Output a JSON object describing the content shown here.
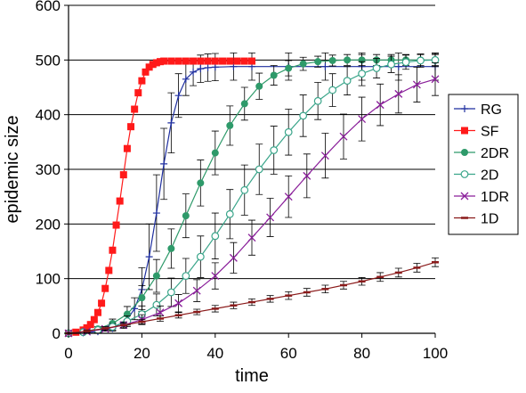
{
  "chart_data": {
    "type": "line",
    "title": "",
    "xlabel": "time",
    "ylabel": "epidemic size",
    "xlim": [
      0,
      100
    ],
    "ylim": [
      0,
      600
    ],
    "xticks": [
      "0",
      "20",
      "40",
      "60",
      "80",
      "100"
    ],
    "yticks": [
      "0",
      "100",
      "200",
      "300",
      "400",
      "500",
      "600"
    ],
    "grid": "horizontal",
    "legend_position": "right",
    "series": [
      {
        "name": "RG",
        "color": "#1f2f9f",
        "marker": "plus",
        "x": [
          0,
          4,
          8,
          12,
          16,
          18,
          20,
          22,
          24,
          26,
          28,
          30,
          32,
          34,
          36,
          38,
          40,
          45,
          50,
          60,
          70,
          80,
          90,
          100
        ],
        "y": [
          0,
          1,
          3,
          9,
          25,
          45,
          80,
          140,
          220,
          310,
          385,
          435,
          465,
          478,
          484,
          486,
          487,
          488,
          488,
          488,
          488,
          488,
          488,
          488
        ],
        "err": [
          0,
          1,
          2,
          5,
          10,
          20,
          40,
          60,
          70,
          65,
          55,
          40,
          30,
          25,
          25,
          25,
          25,
          25,
          25,
          25,
          25,
          25,
          25,
          25
        ]
      },
      {
        "name": "SF",
        "color": "#ff1a1a",
        "marker": "square",
        "x": [
          0,
          2,
          4,
          5,
          6,
          7,
          8,
          9,
          10,
          11,
          12,
          13,
          14,
          15,
          16,
          17,
          18,
          19,
          20,
          21,
          22,
          23,
          24,
          25,
          26,
          28,
          30,
          32,
          34,
          36,
          38,
          40,
          42,
          44,
          46,
          48,
          50
        ],
        "y": [
          0,
          2,
          6,
          10,
          16,
          25,
          38,
          55,
          82,
          115,
          152,
          198,
          242,
          290,
          338,
          378,
          410,
          440,
          462,
          478,
          487,
          492,
          495,
          497,
          498,
          498,
          498,
          498,
          498,
          498,
          498,
          498,
          498,
          498,
          498,
          498,
          498
        ]
      },
      {
        "name": "2DR",
        "color": "#2e9a6a",
        "marker": "circle-filled",
        "x": [
          0,
          4,
          8,
          12,
          16,
          20,
          24,
          28,
          32,
          36,
          40,
          44,
          48,
          52,
          56,
          60,
          64,
          68,
          72,
          76,
          80,
          84,
          88,
          92,
          96,
          100
        ],
        "y": [
          0,
          3,
          8,
          18,
          35,
          65,
          105,
          155,
          215,
          275,
          330,
          380,
          420,
          452,
          472,
          485,
          493,
          497,
          499,
          500,
          500,
          500,
          500,
          500,
          500,
          500
        ],
        "err": [
          0,
          2,
          4,
          8,
          14,
          22,
          30,
          36,
          40,
          42,
          40,
          36,
          30,
          24,
          18,
          14,
          12,
          10,
          10,
          10,
          10,
          10,
          10,
          10,
          10,
          10
        ]
      },
      {
        "name": "2D",
        "color": "#3aa58a",
        "marker": "circle-open",
        "x": [
          0,
          4,
          8,
          12,
          16,
          20,
          24,
          28,
          32,
          36,
          40,
          44,
          48,
          52,
          56,
          60,
          64,
          68,
          72,
          76,
          80,
          84,
          88,
          92,
          96,
          100
        ],
        "y": [
          0,
          2,
          6,
          12,
          22,
          35,
          52,
          75,
          105,
          140,
          178,
          218,
          262,
          300,
          335,
          368,
          398,
          425,
          445,
          462,
          475,
          485,
          492,
          496,
          499,
          500
        ],
        "err": [
          0,
          2,
          3,
          6,
          10,
          15,
          20,
          26,
          32,
          38,
          42,
          45,
          46,
          46,
          44,
          42,
          38,
          34,
          30,
          26,
          22,
          18,
          15,
          13,
          12,
          12
        ]
      },
      {
        "name": "1DR",
        "color": "#8a1f9a",
        "marker": "x",
        "x": [
          0,
          5,
          10,
          15,
          20,
          25,
          30,
          35,
          40,
          45,
          50,
          55,
          60,
          65,
          70,
          75,
          80,
          85,
          90,
          95,
          100
        ],
        "y": [
          0,
          3,
          8,
          15,
          25,
          38,
          55,
          78,
          105,
          138,
          175,
          212,
          250,
          288,
          325,
          360,
          392,
          418,
          438,
          455,
          465
        ],
        "err": [
          0,
          2,
          4,
          6,
          9,
          12,
          16,
          20,
          24,
          28,
          32,
          35,
          38,
          40,
          41,
          41,
          40,
          38,
          35,
          32,
          30
        ]
      },
      {
        "name": "1D",
        "color": "#8a1a1a",
        "marker": "dash",
        "x": [
          0,
          5,
          10,
          15,
          20,
          25,
          30,
          35,
          40,
          45,
          50,
          55,
          60,
          65,
          70,
          75,
          80,
          85,
          90,
          95,
          100
        ],
        "y": [
          0,
          4,
          9,
          15,
          21,
          27,
          33,
          39,
          45,
          51,
          57,
          63,
          69,
          75,
          81,
          88,
          95,
          103,
          111,
          120,
          130
        ],
        "err": [
          0,
          2,
          3,
          4,
          4,
          5,
          5,
          5,
          6,
          6,
          6,
          6,
          7,
          7,
          7,
          7,
          7,
          8,
          8,
          8,
          8
        ]
      }
    ]
  }
}
